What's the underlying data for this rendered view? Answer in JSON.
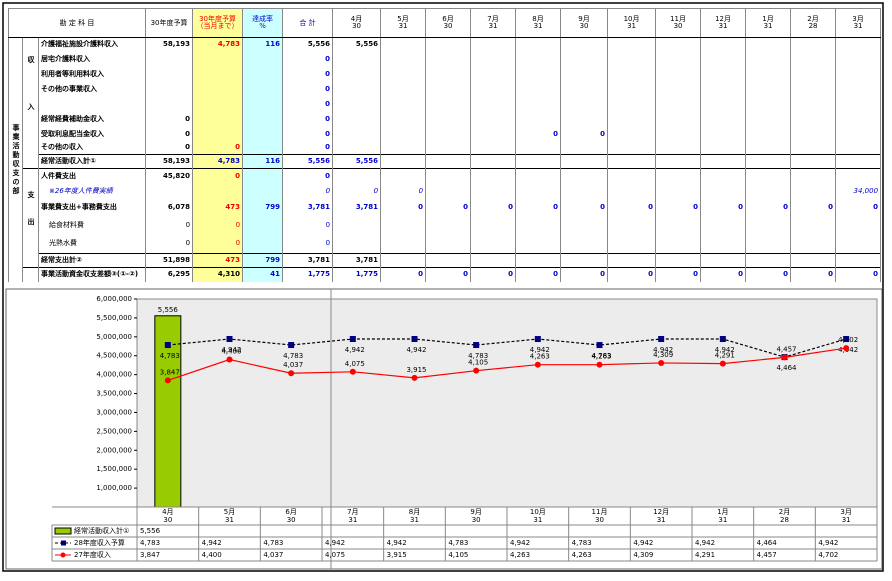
{
  "table": {
    "header": {
      "item": "勘 定 科 目",
      "budget": "30年度予算",
      "budget_to_date": "30年度予算",
      "budget_to_date_note": "（当月まで）",
      "rate": "達成率",
      "rate_unit": "%",
      "total": "合 計",
      "months": [
        {
          "month": "4月",
          "day": "30"
        },
        {
          "month": "5月",
          "day": "31"
        },
        {
          "month": "6月",
          "day": "30"
        },
        {
          "month": "7月",
          "day": "31"
        },
        {
          "month": "8月",
          "day": "31"
        },
        {
          "month": "9月",
          "day": "30"
        },
        {
          "month": "10月",
          "day": "31"
        },
        {
          "month": "11月",
          "day": "30"
        },
        {
          "month": "12月",
          "day": "31"
        },
        {
          "month": "1月",
          "day": "31"
        },
        {
          "month": "2月",
          "day": "28"
        },
        {
          "month": "3月",
          "day": "31"
        }
      ]
    },
    "section": "事業活動収支の部",
    "income": "収入",
    "expense": "支出",
    "rows": [
      {
        "label": "介護福祉施設介護料収入",
        "cells": [
          "58,193",
          "4,783",
          "116",
          "5,556",
          "5,556",
          null,
          null,
          null,
          null,
          null,
          null,
          null,
          null,
          null,
          null,
          null
        ]
      },
      {
        "label": "居宅介護料収入",
        "cells": [
          null,
          null,
          null,
          "0",
          null,
          null,
          null,
          null,
          null,
          null,
          null,
          null,
          null,
          null,
          null,
          null
        ]
      },
      {
        "label": "利用者等利用料収入",
        "cells": [
          null,
          null,
          null,
          "0",
          null,
          null,
          null,
          null,
          null,
          null,
          null,
          null,
          null,
          null,
          null,
          null
        ]
      },
      {
        "label": "その他の事業収入",
        "cells": [
          null,
          null,
          null,
          "0",
          null,
          null,
          null,
          null,
          null,
          null,
          null,
          null,
          null,
          null,
          null,
          null
        ]
      },
      {
        "label": null,
        "cells": [
          null,
          null,
          null,
          "0",
          null,
          null,
          null,
          null,
          null,
          null,
          null,
          null,
          null,
          null,
          null,
          null
        ]
      },
      {
        "label": "経常経費補助金収入",
        "cells": [
          "0",
          null,
          null,
          "0",
          null,
          null,
          null,
          null,
          null,
          null,
          null,
          null,
          null,
          null,
          null,
          null
        ]
      },
      {
        "label": "受取利息配当金収入",
        "cells": [
          "0",
          null,
          null,
          "0",
          null,
          null,
          null,
          null,
          "0",
          "0",
          null,
          null,
          null,
          null,
          null,
          null
        ]
      },
      {
        "label": "その他の収入",
        "cells": [
          "0",
          "0",
          null,
          "0",
          null,
          null,
          null,
          null,
          null,
          null,
          null,
          null,
          null,
          null,
          null,
          null
        ]
      },
      {
        "label": "経常活動収入計①",
        "cells": [
          "58,193",
          "4,783",
          "116",
          "5,556",
          "5,556",
          null,
          null,
          null,
          null,
          null,
          null,
          null,
          null,
          null,
          null,
          null
        ]
      },
      {
        "label": "人件費支出",
        "cells": [
          "45,820",
          "0",
          null,
          "0",
          null,
          null,
          null,
          null,
          null,
          null,
          null,
          null,
          null,
          null,
          null,
          null
        ]
      },
      {
        "label": "※26年度人件費実績",
        "cells": [
          null,
          null,
          null,
          "0",
          "0",
          "0",
          null,
          null,
          null,
          null,
          null,
          null,
          null,
          null,
          null,
          "34,000"
        ]
      },
      {
        "label": "事業費支出+事務費支出",
        "cells": [
          "6,078",
          "473",
          "799",
          "3,781",
          "3,781",
          "0",
          "0",
          "0",
          "0",
          "0",
          "0",
          "0",
          "0",
          "0",
          "0",
          "0"
        ]
      },
      {
        "label": "給食材料費",
        "cells": [
          "0",
          "0",
          null,
          "0",
          null,
          null,
          null,
          null,
          null,
          null,
          null,
          null,
          null,
          null,
          null,
          null
        ]
      },
      {
        "label": "光熱水費",
        "cells": [
          "0",
          "0",
          null,
          "0",
          null,
          null,
          null,
          null,
          null,
          null,
          null,
          null,
          null,
          null,
          null,
          null
        ]
      },
      {
        "label": "経常支出計②",
        "cells": [
          "51,898",
          "473",
          "799",
          "3,781",
          "3,781",
          null,
          null,
          null,
          null,
          null,
          null,
          null,
          null,
          null,
          null,
          null
        ]
      },
      {
        "label": "事業活動資金収支差額③(①-②)",
        "cells": [
          "6,295",
          "4,310",
          "41",
          "1,775",
          "1,775",
          "0",
          "0",
          "0",
          "0",
          "0",
          "0",
          "0",
          "0",
          "0",
          "0",
          "0"
        ]
      }
    ]
  },
  "chart_data": {
    "type": "combo",
    "categories": [
      "4月",
      "5月",
      "6月",
      "7月",
      "8月",
      "9月",
      "10月",
      "11月",
      "12月",
      "1月",
      "2月",
      "3月"
    ],
    "category_days": [
      "30",
      "31",
      "30",
      "31",
      "31",
      "30",
      "31",
      "30",
      "31",
      "31",
      "28",
      "31"
    ],
    "ylim": [
      500000,
      6000000
    ],
    "yticks": [
      {
        "value": 1000000,
        "label": "1,000,000"
      },
      {
        "value": 1500000,
        "label": "1,500,000"
      },
      {
        "value": 2000000,
        "label": "2,000,000"
      },
      {
        "value": 2500000,
        "label": "2,500,000"
      },
      {
        "value": 3000000,
        "label": "3,000,000"
      },
      {
        "value": 3500000,
        "label": "3,500,000"
      },
      {
        "value": 4000000,
        "label": "4,000,000"
      },
      {
        "value": 4500000,
        "label": "4,500,000"
      },
      {
        "value": 5000000,
        "label": "5,000,000"
      },
      {
        "value": 5500000,
        "label": "5,500,000"
      },
      {
        "value": 6000000,
        "label": "6,000,000"
      }
    ],
    "grid": false,
    "series": [
      {
        "name": "経常活動収入計①",
        "type": "bar",
        "color": "#99cc00",
        "values": [
          5556000,
          null,
          null,
          null,
          null,
          null,
          null,
          null,
          null,
          null,
          null,
          null
        ],
        "value_labels": [
          "5,556",
          null,
          null,
          null,
          null,
          null,
          null,
          null,
          null,
          null,
          null,
          null
        ]
      },
      {
        "name": "28年度収入予算",
        "type": "line",
        "color": "#000000",
        "marker_color": "#000080",
        "marker": "square",
        "dashed": true,
        "values": [
          4783000,
          4942000,
          4783000,
          4942000,
          4942000,
          4783000,
          4942000,
          4783000,
          4942000,
          4942000,
          4464000,
          4942000
        ],
        "value_labels": [
          "4,783",
          "4,942",
          "4,783",
          "4,942",
          "4,942",
          "4,783",
          "4,942",
          "4,783",
          "4,942",
          "4,942",
          "4,464",
          "4,942"
        ]
      },
      {
        "name": "27年度収入",
        "type": "line",
        "color": "#ff0000",
        "marker_color": "#ff0000",
        "marker": "circle",
        "dashed": false,
        "values": [
          3847000,
          4400000,
          4037000,
          4075000,
          3915000,
          4105000,
          4263000,
          4263000,
          4309000,
          4291000,
          4457000,
          4702000
        ],
        "value_labels": [
          "3,847",
          "4,400",
          "4,037",
          "4,075",
          "3,915",
          "4,105",
          "4,263",
          "4,263",
          "4,309",
          "4,291",
          "4,457",
          "4,702"
        ]
      }
    ]
  }
}
